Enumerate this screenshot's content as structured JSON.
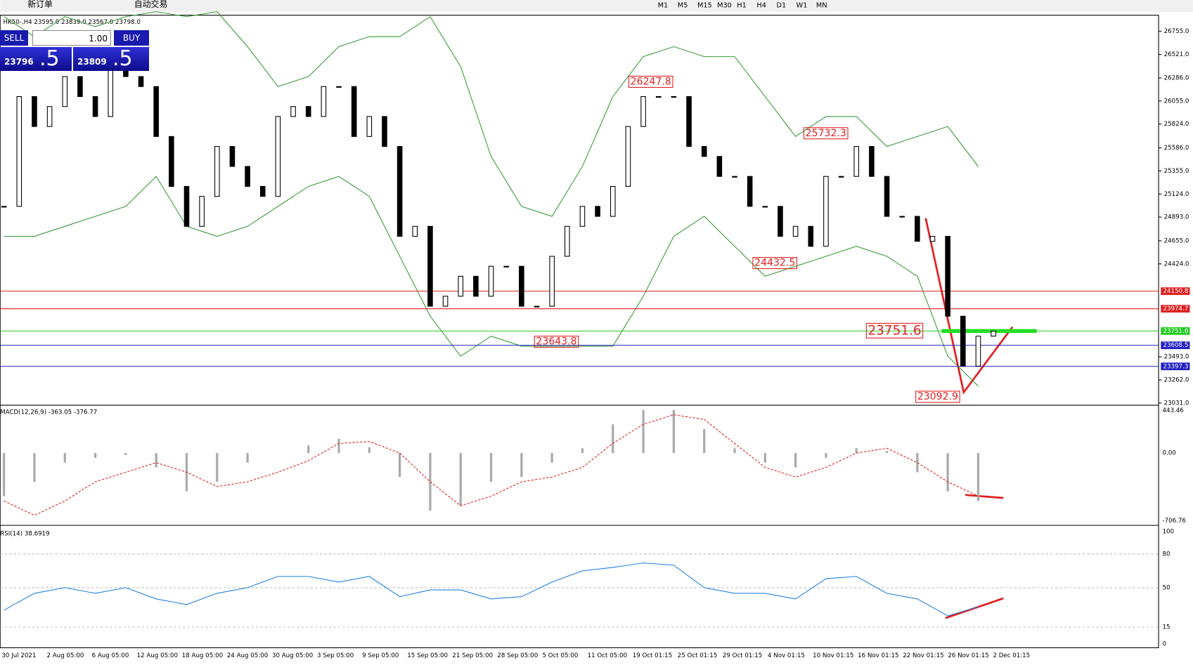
{
  "toolbar": {
    "new_order": "新订单",
    "auto_trading": "自动交易",
    "timeframes": [
      "M1",
      "M5",
      "M15",
      "M30",
      "H1",
      "H4",
      "D1",
      "W1",
      "MN"
    ]
  },
  "trade_panel": {
    "sell": "SELL",
    "lot": "1.00",
    "buy": "BUY",
    "bid_main": "23796",
    "bid_frac": ".5",
    "ask_main": "23809",
    "ask_frac": ".5"
  },
  "main_chart": {
    "info": "HK50-,H4  23595.0 23839.0 23567.0 23798.0",
    "ylim": [
      23016,
      26907
    ],
    "yticks": [
      {
        "value": 26755,
        "label": "26755.0"
      },
      {
        "value": 26521,
        "label": "26521.0"
      },
      {
        "value": 26286,
        "label": "26286.0"
      },
      {
        "value": 26055,
        "label": "26055.0"
      },
      {
        "value": 25824,
        "label": "25824.0"
      },
      {
        "value": 25586,
        "label": "25586.0"
      },
      {
        "value": 25355,
        "label": "25355.0"
      },
      {
        "value": 25124,
        "label": "25124.0"
      },
      {
        "value": 24893,
        "label": "24893.0"
      },
      {
        "value": 24655,
        "label": "24655.0"
      },
      {
        "value": 24424,
        "label": "24424.0"
      },
      {
        "value": 23493,
        "label": "23493.0"
      },
      {
        "value": 23262,
        "label": "23262.0"
      },
      {
        "value": 23031,
        "label": "23031.0"
      }
    ],
    "closes": [
      25000,
      26100,
      25800,
      26000,
      26300,
      26100,
      25900,
      26400,
      26300,
      26200,
      25700,
      25200,
      24800,
      25100,
      25600,
      25400,
      25200,
      25100,
      25900,
      26000,
      25900,
      26200,
      26200,
      25700,
      25900,
      25600,
      24700,
      24800,
      24000,
      24100,
      24300,
      24100,
      24400,
      24400,
      24000,
      24000,
      24500,
      24800,
      25000,
      24900,
      25200,
      25800,
      26100,
      26100,
      26100,
      25600,
      25500,
      25300,
      25300,
      25000,
      25000,
      24700,
      24800,
      24600,
      25300,
      25300,
      25600,
      25300,
      24900,
      24900,
      24650,
      24700,
      23900,
      23400,
      23700,
      23750
    ],
    "upper_band": [
      26900,
      26700,
      26900,
      26800,
      26900,
      26950,
      26900,
      26950,
      26600,
      26200,
      26300,
      26600,
      26700,
      26700,
      26900,
      26400,
      25500,
      25000,
      24900,
      25400,
      26100,
      26500,
      26600,
      26500,
      26500,
      26100,
      25700,
      25900,
      25900,
      25600,
      25700,
      25800,
      25400
    ],
    "lower_band": [
      24700,
      24700,
      24800,
      24900,
      25000,
      25300,
      24800,
      24700,
      24800,
      25000,
      25200,
      25300,
      25100,
      24500,
      23900,
      23500,
      23700,
      23600,
      23600,
      23600,
      23600,
      24100,
      24700,
      24900,
      24600,
      24300,
      24400,
      24500,
      24600,
      24500,
      24300,
      23500,
      23200
    ],
    "levels": [
      {
        "value": 24150.8,
        "label": "24150.8",
        "color": "#e02020"
      },
      {
        "value": 23974.7,
        "label": "23974.7",
        "color": "#e02020"
      },
      {
        "value": 23751.6,
        "label": "23751.6",
        "color": "#22cc22"
      },
      {
        "value": 23608.5,
        "label": "23608.5",
        "color": "#2020c0"
      },
      {
        "value": 23397.3,
        "label": "23397.3",
        "color": "#2020c0"
      }
    ],
    "annotations": [
      {
        "value": 26247.8,
        "label": "26247.8"
      },
      {
        "value": 25732.3,
        "label": "25732.3"
      },
      {
        "value": 24432.5,
        "label": "24432.5"
      },
      {
        "value": 23643.8,
        "label": "23643.8"
      },
      {
        "value": 23092.9,
        "label": "23092.9"
      },
      {
        "value": 23751.6,
        "label": "23751.6"
      }
    ]
  },
  "macd": {
    "title": "MACD(12,26,9) -363.05 -376.77",
    "ylim": [
      -706.76,
      443.46
    ],
    "yticks": [
      {
        "value": 443.46,
        "label": "443.46"
      },
      {
        "value": 0,
        "label": "0.00"
      },
      {
        "value": -706.76,
        "label": "-706.76"
      }
    ],
    "histogram": [
      -450,
      -300,
      -100,
      -50,
      -20,
      -150,
      -400,
      -300,
      -100,
      0,
      80,
      150,
      60,
      -250,
      -600,
      -550,
      -300,
      -250,
      -100,
      50,
      300,
      450,
      450,
      250,
      50,
      -100,
      -150,
      -50,
      50,
      20,
      -200,
      -400,
      -500
    ],
    "signal": [
      -500,
      -650,
      -500,
      -300,
      -200,
      -100,
      -200,
      -350,
      -300,
      -200,
      -80,
      100,
      120,
      0,
      -300,
      -550,
      -450,
      -300,
      -250,
      -150,
      100,
      300,
      400,
      350,
      100,
      -150,
      -250,
      -150,
      0,
      50,
      -100,
      -300,
      -450
    ]
  },
  "rsi": {
    "title": "RSI(14) 38.6919",
    "ylim": [
      0,
      100
    ],
    "yticks": [
      100,
      80,
      50,
      15,
      0
    ],
    "values": [
      30,
      45,
      50,
      45,
      50,
      40,
      35,
      45,
      50,
      60,
      60,
      55,
      60,
      42,
      48,
      48,
      40,
      42,
      55,
      65,
      68,
      72,
      70,
      50,
      45,
      45,
      40,
      58,
      60,
      45,
      40,
      25,
      33
    ]
  },
  "time_axis": [
    "30 Jul 2021",
    "2 Aug 05:00",
    "6 Aug 05:00",
    "12 Aug 05:00",
    "18 Aug 05:00",
    "24 Aug 05:00",
    "30 Aug 05:00",
    "3 Sep 05:00",
    "9 Sep 05:00",
    "15 Sep 05:00",
    "21 Sep 05:00",
    "28 Sep 05:00",
    "5 Oct 05:00",
    "11 Oct 05:00",
    "19 Oct 01:15",
    "25 Oct 01:15",
    "29 Oct 01:15",
    "4 Nov 01:15",
    "10 Nov 01:15",
    "16 Nov 01:15",
    "22 Nov 01:15",
    "26 Nov 01:15",
    "2 Dec 01:15"
  ]
}
